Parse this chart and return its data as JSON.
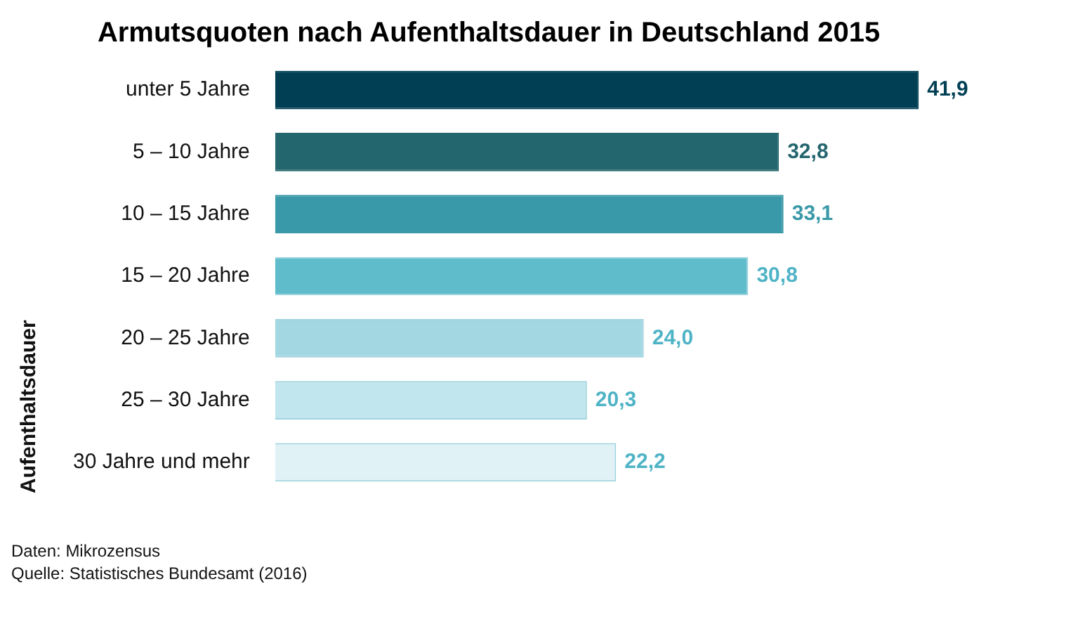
{
  "chart_data": {
    "type": "bar",
    "orientation": "horizontal",
    "title": "Armutsquoten nach Aufenthaltsdauer in Deutschland 2015",
    "ylabel": "Aufenthaltsdauer",
    "categories": [
      "unter 5 Jahre",
      "5 – 10 Jahre",
      "10 – 15 Jahre",
      "15 – 20 Jahre",
      "20 – 25 Jahre",
      "25 – 30 Jahre",
      "30 Jahre und mehr"
    ],
    "values": [
      41.9,
      32.8,
      33.1,
      30.8,
      24.0,
      20.3,
      22.2
    ],
    "value_labels": [
      "41,9",
      "32,8",
      "33,1",
      "30,8",
      "24,0",
      "20,3",
      "22,2"
    ],
    "colors": [
      "#003f54",
      "#24666e",
      "#3a99a8",
      "#5fbccb",
      "#a3d8e3",
      "#c2e6ed",
      "#e0f2f6"
    ],
    "grid": false,
    "legend": false,
    "tick_labels": "y",
    "annotations": [
      "Daten: Mikrozensus",
      "Quelle: Statistisches Bundesamt (2016)"
    ]
  }
}
